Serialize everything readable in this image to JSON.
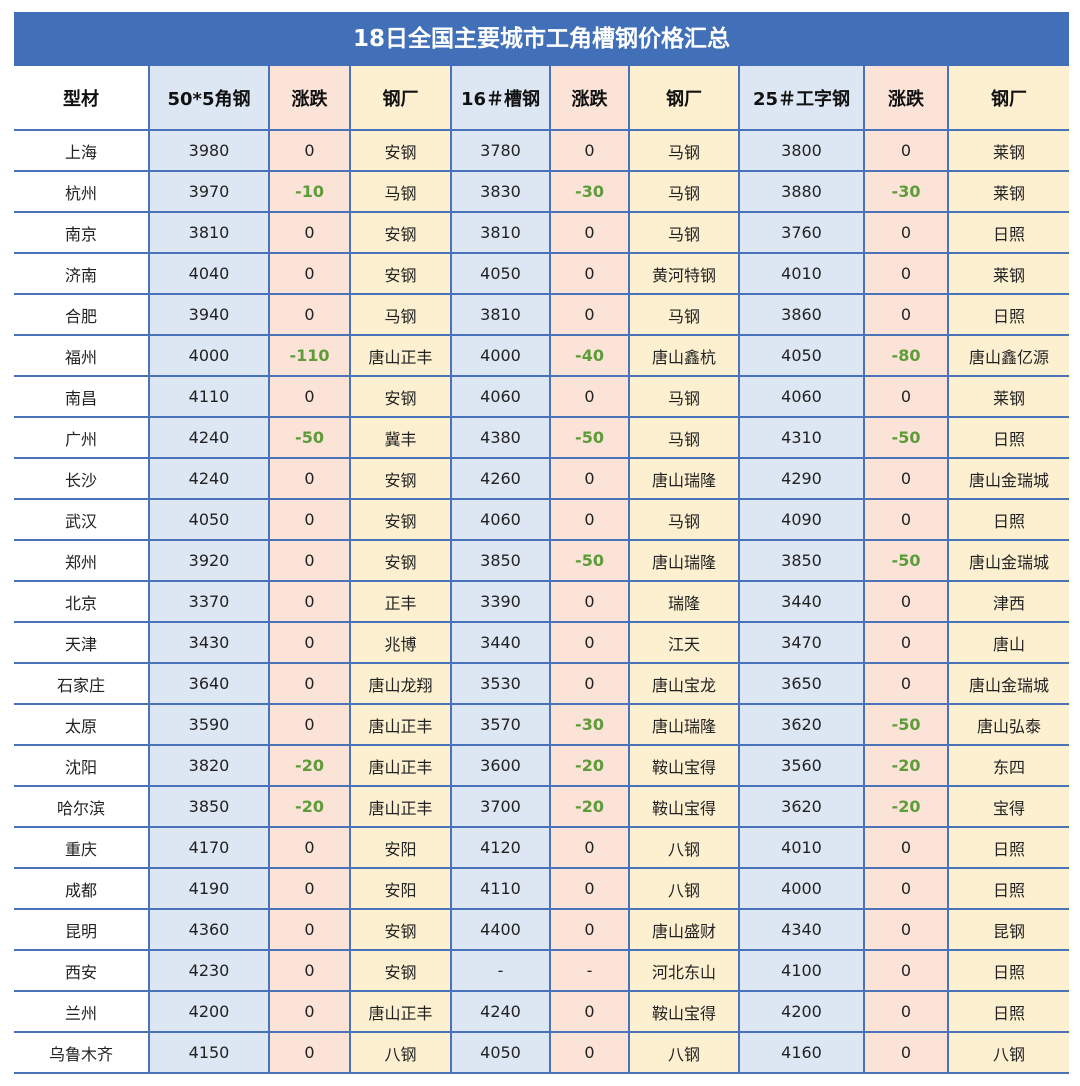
{
  "title": "18日全国主要城市工角槽钢价格汇总",
  "headers": [
    "型材",
    "50*5角钢",
    "涨跌",
    "钢厂",
    "16＃槽钢",
    "涨跌",
    "钢厂",
    "25＃工字钢",
    "涨跌",
    "钢厂"
  ],
  "colors": {
    "title_bg": "#4170b8",
    "border": "#4a72b8",
    "price_bg": "#dde7f3",
    "change_bg": "#fbe3d8",
    "mill_bg": "#fdf0d0",
    "negative_text": "#5e9c3a"
  },
  "rows": [
    [
      "上海",
      "3980",
      "0",
      "安钢",
      "3780",
      "0",
      "马钢",
      "3800",
      "0",
      "莱钢"
    ],
    [
      "杭州",
      "3970",
      "-10",
      "马钢",
      "3830",
      "-30",
      "马钢",
      "3880",
      "-30",
      "莱钢"
    ],
    [
      "南京",
      "3810",
      "0",
      "安钢",
      "3810",
      "0",
      "马钢",
      "3760",
      "0",
      "日照"
    ],
    [
      "济南",
      "4040",
      "0",
      "安钢",
      "4050",
      "0",
      "黄河特钢",
      "4010",
      "0",
      "莱钢"
    ],
    [
      "合肥",
      "3940",
      "0",
      "马钢",
      "3810",
      "0",
      "马钢",
      "3860",
      "0",
      "日照"
    ],
    [
      "福州",
      "4000",
      "-110",
      "唐山正丰",
      "4000",
      "-40",
      "唐山鑫杭",
      "4050",
      "-80",
      "唐山鑫亿源"
    ],
    [
      "南昌",
      "4110",
      "0",
      "安钢",
      "4060",
      "0",
      "马钢",
      "4060",
      "0",
      "莱钢"
    ],
    [
      "广州",
      "4240",
      "-50",
      "冀丰",
      "4380",
      "-50",
      "马钢",
      "4310",
      "-50",
      "日照"
    ],
    [
      "长沙",
      "4240",
      "0",
      "安钢",
      "4260",
      "0",
      "唐山瑞隆",
      "4290",
      "0",
      "唐山金瑞城"
    ],
    [
      "武汉",
      "4050",
      "0",
      "安钢",
      "4060",
      "0",
      "马钢",
      "4090",
      "0",
      "日照"
    ],
    [
      "郑州",
      "3920",
      "0",
      "安钢",
      "3850",
      "-50",
      "唐山瑞隆",
      "3850",
      "-50",
      "唐山金瑞城"
    ],
    [
      "北京",
      "3370",
      "0",
      "正丰",
      "3390",
      "0",
      "瑞隆",
      "3440",
      "0",
      "津西"
    ],
    [
      "天津",
      "3430",
      "0",
      "兆博",
      "3440",
      "0",
      "江天",
      "3470",
      "0",
      "唐山"
    ],
    [
      "石家庄",
      "3640",
      "0",
      "唐山龙翔",
      "3530",
      "0",
      "唐山宝龙",
      "3650",
      "0",
      "唐山金瑞城"
    ],
    [
      "太原",
      "3590",
      "0",
      "唐山正丰",
      "3570",
      "-30",
      "唐山瑞隆",
      "3620",
      "-50",
      "唐山弘泰"
    ],
    [
      "沈阳",
      "3820",
      "-20",
      "唐山正丰",
      "3600",
      "-20",
      "鞍山宝得",
      "3560",
      "-20",
      "东四"
    ],
    [
      "哈尔滨",
      "3850",
      "-20",
      "唐山正丰",
      "3700",
      "-20",
      "鞍山宝得",
      "3620",
      "-20",
      "宝得"
    ],
    [
      "重庆",
      "4170",
      "0",
      "安阳",
      "4120",
      "0",
      "八钢",
      "4010",
      "0",
      "日照"
    ],
    [
      "成都",
      "4190",
      "0",
      "安阳",
      "4110",
      "0",
      "八钢",
      "4000",
      "0",
      "日照"
    ],
    [
      "昆明",
      "4360",
      "0",
      "安钢",
      "4400",
      "0",
      "唐山盛财",
      "4340",
      "0",
      "昆钢"
    ],
    [
      "西安",
      "4230",
      "0",
      "安钢",
      "-",
      "-",
      "河北东山",
      "4100",
      "0",
      "日照"
    ],
    [
      "兰州",
      "4200",
      "0",
      "唐山正丰",
      "4240",
      "0",
      "鞍山宝得",
      "4200",
      "0",
      "日照"
    ],
    [
      "乌鲁木齐",
      "4150",
      "0",
      "八钢",
      "4050",
      "0",
      "八钢",
      "4160",
      "0",
      "八钢"
    ]
  ]
}
